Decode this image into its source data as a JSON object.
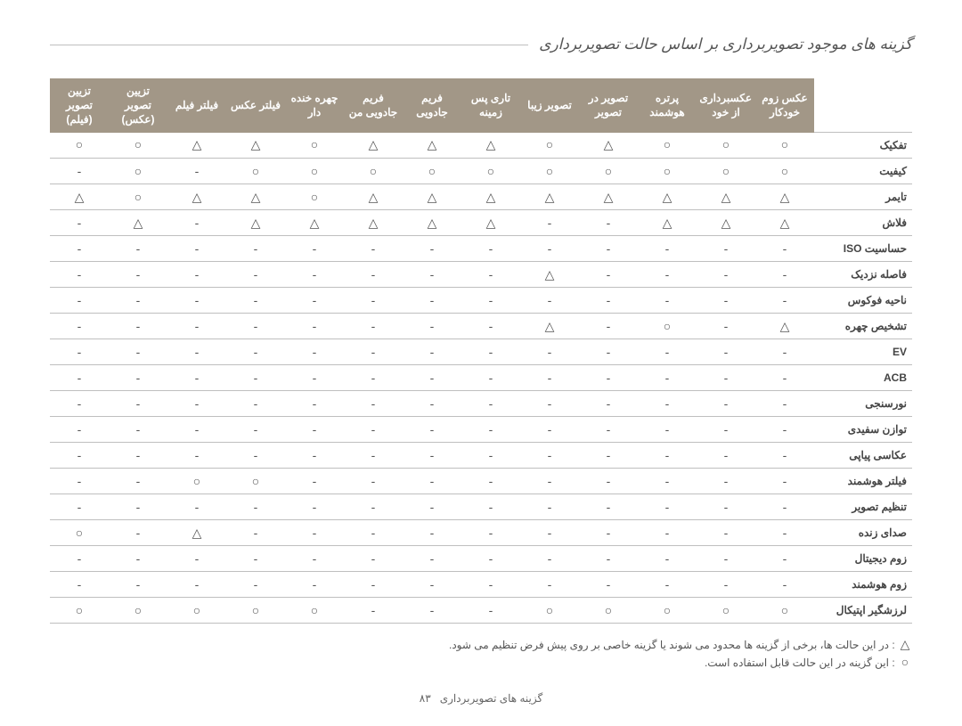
{
  "title": "گزینه های موجود تصویربرداری بر اساس حالت تصویربرداری",
  "symbols": {
    "circle": "○",
    "triangle": "△",
    "dash": "-"
  },
  "colors": {
    "header_bg": "#a29787",
    "header_fg": "#ffffff",
    "border": "#bfbfbf",
    "text": "#555555",
    "rowhead": "#444444",
    "background": "#ffffff"
  },
  "columns": [
    "عکس زوم خودکار",
    "عکسبرداری از خود",
    "پرتره هوشمند",
    "تصویر در تصویر",
    "تصویر زیبا",
    "تاری پس زمینه",
    "فریم جادویی",
    "فریم جادویی من",
    "چهره خنده دار",
    "فیلتر عکس",
    "فیلتر فیلم",
    "تزیین تصویر (عکس)",
    "تزیین تصویر (فیلم)"
  ],
  "rows": [
    {
      "label": "تفکیک",
      "cells": [
        "c",
        "c",
        "c",
        "t",
        "c",
        "t",
        "t",
        "t",
        "c",
        "t",
        "t",
        "c",
        "c"
      ]
    },
    {
      "label": "کیفیت",
      "cells": [
        "c",
        "c",
        "c",
        "c",
        "c",
        "c",
        "c",
        "c",
        "c",
        "c",
        "d",
        "c",
        "d"
      ]
    },
    {
      "label": "تایمر",
      "cells": [
        "t",
        "t",
        "t",
        "t",
        "t",
        "t",
        "t",
        "t",
        "c",
        "t",
        "t",
        "c",
        "t"
      ]
    },
    {
      "label": "فلاش",
      "cells": [
        "t",
        "t",
        "t",
        "d",
        "d",
        "t",
        "t",
        "t",
        "t",
        "t",
        "d",
        "t",
        "d"
      ]
    },
    {
      "label": "حساسیت ISO",
      "cells": [
        "d",
        "d",
        "d",
        "d",
        "d",
        "d",
        "d",
        "d",
        "d",
        "d",
        "d",
        "d",
        "d"
      ]
    },
    {
      "label": "فاصله نزدیک",
      "cells": [
        "d",
        "d",
        "d",
        "d",
        "t",
        "d",
        "d",
        "d",
        "d",
        "d",
        "d",
        "d",
        "d"
      ]
    },
    {
      "label": "ناحیه فوکوس",
      "cells": [
        "d",
        "d",
        "d",
        "d",
        "d",
        "d",
        "d",
        "d",
        "d",
        "d",
        "d",
        "d",
        "d"
      ]
    },
    {
      "label": "تشخیص چهره",
      "cells": [
        "t",
        "d",
        "c",
        "d",
        "t",
        "d",
        "d",
        "d",
        "d",
        "d",
        "d",
        "d",
        "d"
      ]
    },
    {
      "label": "EV",
      "cells": [
        "d",
        "d",
        "d",
        "d",
        "d",
        "d",
        "d",
        "d",
        "d",
        "d",
        "d",
        "d",
        "d"
      ]
    },
    {
      "label": "ACB",
      "cells": [
        "d",
        "d",
        "d",
        "d",
        "d",
        "d",
        "d",
        "d",
        "d",
        "d",
        "d",
        "d",
        "d"
      ]
    },
    {
      "label": "نورسنجی",
      "cells": [
        "d",
        "d",
        "d",
        "d",
        "d",
        "d",
        "d",
        "d",
        "d",
        "d",
        "d",
        "d",
        "d"
      ]
    },
    {
      "label": "توازن سفیدی",
      "cells": [
        "d",
        "d",
        "d",
        "d",
        "d",
        "d",
        "d",
        "d",
        "d",
        "d",
        "d",
        "d",
        "d"
      ]
    },
    {
      "label": "عکاسی پیاپی",
      "cells": [
        "d",
        "d",
        "d",
        "d",
        "d",
        "d",
        "d",
        "d",
        "d",
        "d",
        "d",
        "d",
        "d"
      ]
    },
    {
      "label": "فیلتر هوشمند",
      "cells": [
        "d",
        "d",
        "d",
        "d",
        "d",
        "d",
        "d",
        "d",
        "d",
        "c",
        "c",
        "d",
        "d"
      ]
    },
    {
      "label": "تنظیم تصویر",
      "cells": [
        "d",
        "d",
        "d",
        "d",
        "d",
        "d",
        "d",
        "d",
        "d",
        "d",
        "d",
        "d",
        "d"
      ]
    },
    {
      "label": "صدای زنده",
      "cells": [
        "d",
        "d",
        "d",
        "d",
        "d",
        "d",
        "d",
        "d",
        "d",
        "d",
        "t",
        "d",
        "c"
      ]
    },
    {
      "label": "زوم دیجیتال",
      "cells": [
        "d",
        "d",
        "d",
        "d",
        "d",
        "d",
        "d",
        "d",
        "d",
        "d",
        "d",
        "d",
        "d"
      ]
    },
    {
      "label": "زوم هوشمند",
      "cells": [
        "d",
        "d",
        "d",
        "d",
        "d",
        "d",
        "d",
        "d",
        "d",
        "d",
        "d",
        "d",
        "d"
      ]
    },
    {
      "label": "لرزشگیر اپتیکال",
      "cells": [
        "c",
        "c",
        "c",
        "c",
        "c",
        "d",
        "d",
        "d",
        "c",
        "c",
        "c",
        "c",
        "c"
      ]
    }
  ],
  "footnote_triangle": ": در این حالت ها، برخی از گزینه ها محدود می شوند یا گزینه خاصی بر روی پیش فرض تنظیم می شود.",
  "footnote_circle": ": این گزینه در این حالت قابل استفاده است.",
  "footer_text": "گزینه های تصویربرداری",
  "footer_page": "۸۳"
}
